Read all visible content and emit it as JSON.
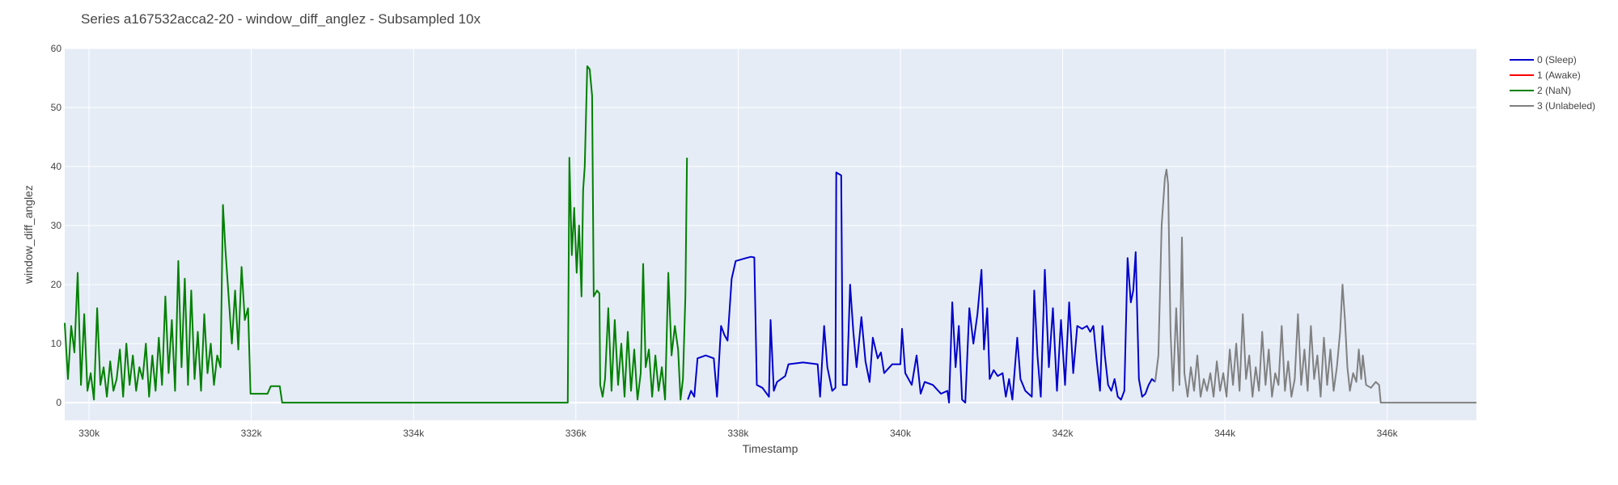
{
  "chart_data": {
    "type": "line",
    "title": "Series a167532acca2-20 - window_diff_anglez - Subsampled 10x",
    "xlabel": "Timestamp",
    "ylabel": "window_diff_anglez",
    "xlim": [
      329700,
      347100
    ],
    "ylim": [
      -3,
      60
    ],
    "x_ticks": [
      330000,
      332000,
      334000,
      336000,
      338000,
      340000,
      342000,
      344000,
      346000
    ],
    "x_tick_labels": [
      "330k",
      "332k",
      "334k",
      "336k",
      "338k",
      "340k",
      "342k",
      "344k",
      "346k"
    ],
    "y_ticks": [
      0,
      10,
      20,
      30,
      40,
      50,
      60
    ],
    "y_tick_labels": [
      "0",
      "10",
      "20",
      "30",
      "40",
      "50",
      "60"
    ],
    "grid": true,
    "legend_position": "top-right",
    "plot_background": "#e5ecf6",
    "series": [
      {
        "name": "0 (Sleep)",
        "color": "#0000cc",
        "points": [
          [
            337380,
            0.5
          ],
          [
            337420,
            2
          ],
          [
            337460,
            1
          ],
          [
            337500,
            7.5
          ],
          [
            337600,
            8
          ],
          [
            337700,
            7.5
          ],
          [
            337740,
            1
          ],
          [
            337790,
            13
          ],
          [
            337830,
            11.5
          ],
          [
            337870,
            10.5
          ],
          [
            337920,
            21
          ],
          [
            337970,
            24
          ],
          [
            338100,
            24.5
          ],
          [
            338160,
            24.7
          ],
          [
            338200,
            24.6
          ],
          [
            338230,
            3
          ],
          [
            338300,
            2.5
          ],
          [
            338380,
            1
          ],
          [
            338400,
            14
          ],
          [
            338440,
            2
          ],
          [
            338480,
            3.5
          ],
          [
            338580,
            4.5
          ],
          [
            338620,
            6.5
          ],
          [
            338800,
            6.8
          ],
          [
            338980,
            6.5
          ],
          [
            339010,
            1
          ],
          [
            339060,
            13
          ],
          [
            339100,
            6
          ],
          [
            339160,
            2
          ],
          [
            339200,
            2.5
          ],
          [
            339210,
            39
          ],
          [
            339270,
            38.5
          ],
          [
            339290,
            3
          ],
          [
            339340,
            3
          ],
          [
            339380,
            20
          ],
          [
            339420,
            12
          ],
          [
            339460,
            6
          ],
          [
            339520,
            14.5
          ],
          [
            339570,
            7
          ],
          [
            339620,
            3.5
          ],
          [
            339660,
            11
          ],
          [
            339720,
            7.5
          ],
          [
            339760,
            8.5
          ],
          [
            339800,
            5
          ],
          [
            339900,
            6.5
          ],
          [
            340000,
            6.5
          ],
          [
            340020,
            12.5
          ],
          [
            340060,
            5
          ],
          [
            340140,
            3
          ],
          [
            340200,
            8
          ],
          [
            340250,
            1.5
          ],
          [
            340300,
            3.5
          ],
          [
            340400,
            3
          ],
          [
            340500,
            1.5
          ],
          [
            340580,
            2
          ],
          [
            340600,
            0
          ],
          [
            340640,
            17
          ],
          [
            340680,
            6
          ],
          [
            340720,
            13
          ],
          [
            340760,
            0.5
          ],
          [
            340800,
            0
          ],
          [
            340850,
            16
          ],
          [
            340900,
            10
          ],
          [
            340950,
            15
          ],
          [
            341000,
            22.5
          ],
          [
            341030,
            9
          ],
          [
            341070,
            16
          ],
          [
            341100,
            4
          ],
          [
            341150,
            5.5
          ],
          [
            341200,
            4.5
          ],
          [
            341260,
            5
          ],
          [
            341300,
            1
          ],
          [
            341340,
            4
          ],
          [
            341380,
            0.5
          ],
          [
            341440,
            11
          ],
          [
            341480,
            4
          ],
          [
            341540,
            2
          ],
          [
            341620,
            1
          ],
          [
            341650,
            19
          ],
          [
            341690,
            8
          ],
          [
            341730,
            1
          ],
          [
            341780,
            22.5
          ],
          [
            341830,
            6
          ],
          [
            341880,
            16
          ],
          [
            341930,
            2
          ],
          [
            341980,
            14
          ],
          [
            342030,
            3
          ],
          [
            342080,
            17
          ],
          [
            342130,
            5
          ],
          [
            342180,
            13
          ],
          [
            342240,
            12.5
          ],
          [
            342300,
            13
          ],
          [
            342340,
            12
          ],
          [
            342380,
            13
          ],
          [
            342420,
            7
          ],
          [
            342460,
            2
          ],
          [
            342490,
            13
          ],
          [
            342520,
            8
          ],
          [
            342560,
            3
          ],
          [
            342600,
            2
          ],
          [
            342640,
            4
          ],
          [
            342680,
            1
          ],
          [
            342720,
            0.5
          ],
          [
            342760,
            2
          ],
          [
            342800,
            24.5
          ],
          [
            342840,
            17
          ],
          [
            342870,
            19
          ],
          [
            342900,
            25.5
          ],
          [
            342940,
            4
          ],
          [
            342980,
            1
          ],
          [
            343020,
            1.5
          ],
          [
            343060,
            3
          ],
          [
            343100,
            4
          ],
          [
            343140,
            3.5
          ]
        ]
      },
      {
        "name": "1 (Awake)",
        "color": "#ff0000",
        "points": []
      },
      {
        "name": "2 (NaN)",
        "color": "#008000",
        "points": [
          [
            329700,
            13.5
          ],
          [
            329740,
            4
          ],
          [
            329780,
            13
          ],
          [
            329820,
            8.5
          ],
          [
            329860,
            22
          ],
          [
            329900,
            3
          ],
          [
            329940,
            15
          ],
          [
            329980,
            2
          ],
          [
            330020,
            5
          ],
          [
            330060,
            0.5
          ],
          [
            330100,
            16
          ],
          [
            330140,
            3
          ],
          [
            330180,
            6
          ],
          [
            330220,
            1
          ],
          [
            330260,
            7
          ],
          [
            330300,
            2
          ],
          [
            330340,
            4
          ],
          [
            330380,
            9
          ],
          [
            330420,
            1
          ],
          [
            330460,
            10
          ],
          [
            330500,
            3
          ],
          [
            330540,
            8
          ],
          [
            330580,
            2
          ],
          [
            330620,
            6
          ],
          [
            330660,
            4
          ],
          [
            330700,
            10
          ],
          [
            330740,
            1
          ],
          [
            330780,
            8
          ],
          [
            330820,
            2
          ],
          [
            330860,
            11
          ],
          [
            330900,
            3
          ],
          [
            330940,
            18
          ],
          [
            330980,
            5
          ],
          [
            331020,
            14
          ],
          [
            331060,
            2
          ],
          [
            331100,
            24
          ],
          [
            331140,
            6
          ],
          [
            331180,
            21
          ],
          [
            331220,
            3
          ],
          [
            331260,
            19
          ],
          [
            331300,
            4
          ],
          [
            331340,
            12
          ],
          [
            331380,
            2
          ],
          [
            331420,
            15
          ],
          [
            331460,
            5
          ],
          [
            331500,
            10
          ],
          [
            331540,
            3
          ],
          [
            331580,
            8
          ],
          [
            331620,
            6
          ],
          [
            331650,
            33.5
          ],
          [
            331680,
            26
          ],
          [
            331720,
            18
          ],
          [
            331760,
            10
          ],
          [
            331800,
            19
          ],
          [
            331840,
            9
          ],
          [
            331880,
            23
          ],
          [
            331920,
            14
          ],
          [
            331960,
            16
          ],
          [
            331990,
            1.5
          ],
          [
            332100,
            1.5
          ],
          [
            332200,
            1.5
          ],
          [
            332240,
            2.8
          ],
          [
            332350,
            2.8
          ],
          [
            332380,
            0
          ],
          [
            333000,
            0
          ],
          [
            334000,
            0
          ],
          [
            335000,
            0
          ],
          [
            335900,
            0
          ],
          [
            335920,
            41.5
          ],
          [
            335950,
            25
          ],
          [
            335980,
            33
          ],
          [
            336010,
            22
          ],
          [
            336040,
            30
          ],
          [
            336070,
            18
          ],
          [
            336090,
            36
          ],
          [
            336110,
            40
          ],
          [
            336140,
            57
          ],
          [
            336170,
            56.5
          ],
          [
            336200,
            52
          ],
          [
            336220,
            18
          ],
          [
            336260,
            19
          ],
          [
            336290,
            18.5
          ],
          [
            336300,
            3
          ],
          [
            336330,
            1
          ],
          [
            336360,
            4
          ],
          [
            336400,
            16
          ],
          [
            336440,
            2
          ],
          [
            336480,
            14
          ],
          [
            336520,
            3
          ],
          [
            336560,
            10
          ],
          [
            336600,
            1
          ],
          [
            336640,
            12
          ],
          [
            336680,
            2
          ],
          [
            336720,
            9
          ],
          [
            336760,
            0.5
          ],
          [
            336800,
            5
          ],
          [
            336830,
            23.5
          ],
          [
            336860,
            6
          ],
          [
            336900,
            9
          ],
          [
            336940,
            1
          ],
          [
            336980,
            8
          ],
          [
            337020,
            2
          ],
          [
            337060,
            6
          ],
          [
            337100,
            0.5
          ],
          [
            337140,
            22
          ],
          [
            337180,
            8
          ],
          [
            337220,
            13
          ],
          [
            337260,
            9
          ],
          [
            337290,
            0.5
          ],
          [
            337320,
            4
          ],
          [
            337350,
            18
          ],
          [
            337370,
            41.5
          ]
        ]
      },
      {
        "name": "3 (Unlabeled)",
        "color": "#808080",
        "points": [
          [
            343140,
            3.5
          ],
          [
            343180,
            8
          ],
          [
            343220,
            30
          ],
          [
            343260,
            38
          ],
          [
            343280,
            39.5
          ],
          [
            343300,
            37
          ],
          [
            343330,
            12
          ],
          [
            343360,
            2
          ],
          [
            343400,
            16
          ],
          [
            343440,
            3
          ],
          [
            343470,
            28
          ],
          [
            343500,
            5
          ],
          [
            343540,
            1
          ],
          [
            343580,
            6
          ],
          [
            343620,
            2
          ],
          [
            343660,
            8
          ],
          [
            343700,
            1
          ],
          [
            343740,
            4
          ],
          [
            343780,
            2
          ],
          [
            343820,
            5
          ],
          [
            343860,
            1
          ],
          [
            343900,
            7
          ],
          [
            343940,
            2
          ],
          [
            343980,
            5
          ],
          [
            344020,
            1
          ],
          [
            344060,
            9
          ],
          [
            344100,
            3
          ],
          [
            344140,
            10
          ],
          [
            344180,
            2
          ],
          [
            344220,
            15
          ],
          [
            344260,
            4
          ],
          [
            344300,
            8
          ],
          [
            344340,
            1
          ],
          [
            344380,
            6
          ],
          [
            344420,
            2
          ],
          [
            344460,
            12
          ],
          [
            344500,
            3
          ],
          [
            344540,
            9
          ],
          [
            344580,
            1
          ],
          [
            344620,
            5
          ],
          [
            344660,
            3
          ],
          [
            344700,
            13
          ],
          [
            344740,
            2
          ],
          [
            344780,
            7
          ],
          [
            344820,
            1
          ],
          [
            344860,
            4
          ],
          [
            344900,
            15
          ],
          [
            344940,
            3
          ],
          [
            344980,
            9
          ],
          [
            345020,
            2
          ],
          [
            345060,
            13
          ],
          [
            345100,
            4
          ],
          [
            345140,
            8
          ],
          [
            345180,
            1
          ],
          [
            345220,
            11
          ],
          [
            345260,
            3
          ],
          [
            345300,
            9
          ],
          [
            345340,
            2
          ],
          [
            345380,
            6
          ],
          [
            345420,
            12
          ],
          [
            345450,
            20
          ],
          [
            345480,
            14
          ],
          [
            345510,
            6
          ],
          [
            345540,
            2
          ],
          [
            345580,
            5
          ],
          [
            345620,
            3.5
          ],
          [
            345650,
            9
          ],
          [
            345680,
            4
          ],
          [
            345700,
            8
          ],
          [
            345740,
            3
          ],
          [
            345800,
            2.5
          ],
          [
            345860,
            3.5
          ],
          [
            345900,
            3
          ],
          [
            345920,
            0
          ],
          [
            346500,
            0
          ],
          [
            347100,
            0
          ]
        ]
      }
    ]
  }
}
